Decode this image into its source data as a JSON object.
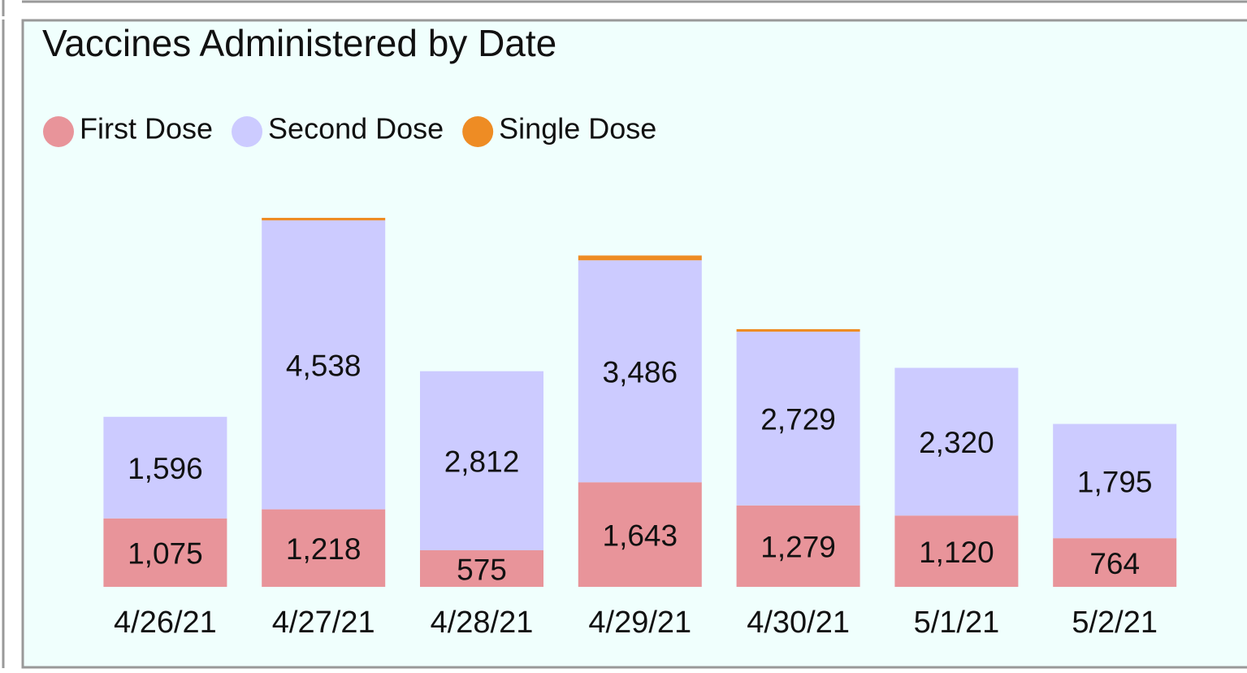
{
  "chart_data": {
    "type": "stacked-bar",
    "title": "Vaccines Administered by Date",
    "categories": [
      "4/26/21",
      "4/27/21",
      "4/28/21",
      "4/29/21",
      "4/30/21",
      "5/1/21",
      "5/2/21"
    ],
    "series": [
      {
        "name": "First Dose",
        "color": "#e8949a",
        "values": [
          1075,
          1218,
          575,
          1643,
          1279,
          1120,
          764
        ],
        "value_labels": [
          "1,075",
          "1,218",
          "575",
          "1,643",
          "1,279",
          "1,120",
          "764"
        ]
      },
      {
        "name": "Second Dose",
        "color": "#cccbff",
        "values": [
          1596,
          4538,
          2812,
          3486,
          2729,
          2320,
          1795
        ],
        "value_labels": [
          "1,596",
          "4,538",
          "2,812",
          "3,486",
          "2,729",
          "2,320",
          "1,795"
        ]
      },
      {
        "name": "Single Dose",
        "color": "#ee8c24",
        "values": [
          0,
          40,
          0,
          75,
          40,
          0,
          0
        ]
      }
    ]
  }
}
